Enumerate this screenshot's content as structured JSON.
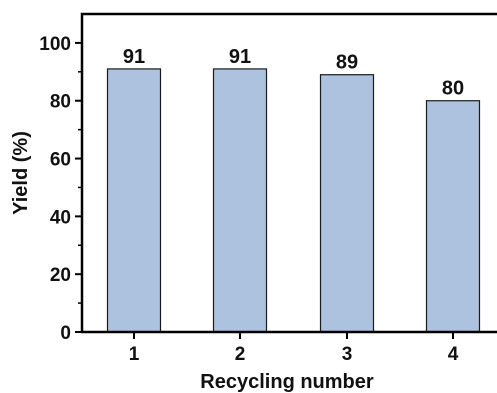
{
  "chart_data": {
    "type": "bar",
    "categories": [
      "1",
      "2",
      "3",
      "4"
    ],
    "values": [
      91,
      91,
      89,
      80
    ],
    "data_labels": [
      "91",
      "91",
      "89",
      "80"
    ],
    "title": "",
    "xlabel": "Recycling number",
    "ylabel": "Yield (%)",
    "ylim": [
      0,
      110
    ],
    "yticks": [
      0,
      20,
      40,
      60,
      80,
      100
    ],
    "ytick_labels": [
      "0",
      "20",
      "40",
      "60",
      "80",
      "100"
    ],
    "grid": false,
    "legend": "none",
    "bar_color": "#adc2de",
    "bar_edge_color": "#1a1a1a",
    "axis_color": "#000000"
  }
}
